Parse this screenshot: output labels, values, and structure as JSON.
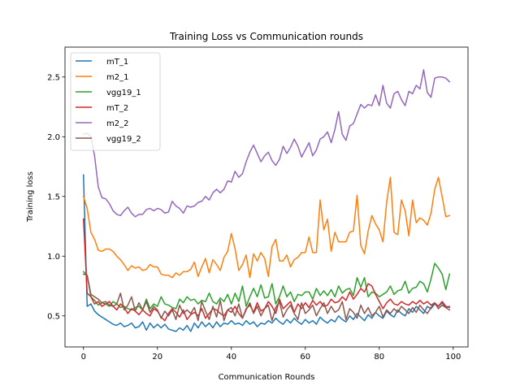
{
  "chart_data": {
    "type": "line",
    "title": "Training Loss vs Communication rounds",
    "xlabel": "Communication Rounds",
    "ylabel": "Training loss",
    "xlim": [
      -5,
      104
    ],
    "ylim": [
      0.24,
      2.75
    ],
    "xticks": [
      0,
      20,
      40,
      60,
      80,
      100
    ],
    "yticks": [
      0.5,
      1.0,
      1.5,
      2.0,
      2.5
    ],
    "xtick_labels": [
      "0",
      "20",
      "40",
      "60",
      "80",
      "100"
    ],
    "ytick_labels": [
      "0.5",
      "1.0",
      "1.5",
      "2.0",
      "2.5"
    ],
    "grid": false,
    "legend_position": "top-left",
    "series": [
      {
        "name": "mT_1",
        "color": "#1f77b4",
        "values": [
          1.68,
          0.58,
          0.6,
          0.54,
          0.51,
          0.49,
          0.47,
          0.45,
          0.43,
          0.42,
          0.44,
          0.41,
          0.42,
          0.44,
          0.4,
          0.41,
          0.45,
          0.38,
          0.44,
          0.4,
          0.43,
          0.4,
          0.43,
          0.39,
          0.38,
          0.37,
          0.4,
          0.38,
          0.42,
          0.37,
          0.44,
          0.4,
          0.45,
          0.41,
          0.44,
          0.4,
          0.45,
          0.41,
          0.44,
          0.43,
          0.46,
          0.43,
          0.44,
          0.42,
          0.46,
          0.43,
          0.45,
          0.41,
          0.44,
          0.43,
          0.46,
          0.44,
          0.48,
          0.45,
          0.43,
          0.47,
          0.44,
          0.48,
          0.45,
          0.43,
          0.47,
          0.44,
          0.46,
          0.43,
          0.49,
          0.46,
          0.44,
          0.47,
          0.45,
          0.5,
          0.47,
          0.45,
          0.5,
          0.47,
          0.52,
          0.49,
          0.46,
          0.51,
          0.48,
          0.53,
          0.5,
          0.48,
          0.54,
          0.51,
          0.49,
          0.55,
          0.52,
          0.5,
          0.56,
          0.53,
          0.58,
          0.55,
          0.52,
          0.58,
          0.56,
          0.6,
          0.58,
          0.61,
          0.57,
          0.58
        ]
      },
      {
        "name": "m2_1",
        "color": "#ff7f0e",
        "values": [
          1.5,
          1.4,
          1.2,
          1.14,
          1.05,
          1.04,
          1.06,
          1.06,
          1.04,
          1.0,
          0.97,
          0.93,
          0.88,
          0.92,
          0.9,
          0.91,
          0.88,
          0.89,
          0.93,
          0.91,
          0.91,
          0.85,
          0.84,
          0.84,
          0.82,
          0.86,
          0.84,
          0.87,
          0.87,
          0.89,
          0.95,
          0.83,
          0.91,
          0.98,
          0.86,
          0.97,
          0.93,
          0.88,
          0.99,
          1.04,
          1.19,
          1.06,
          0.88,
          0.93,
          1.01,
          0.82,
          1.02,
          0.96,
          1.03,
          0.98,
          0.83,
          1.08,
          1.14,
          0.96,
          0.96,
          1.01,
          0.91,
          0.97,
          0.99,
          1.03,
          1.03,
          1.16,
          1.03,
          1.03,
          1.47,
          1.22,
          1.31,
          1.04,
          1.2,
          1.12,
          1.12,
          1.12,
          1.2,
          1.21,
          1.51,
          1.09,
          1.02,
          1.21,
          1.34,
          1.27,
          1.22,
          1.12,
          1.45,
          1.66,
          1.2,
          1.18,
          1.47,
          1.38,
          1.17,
          1.47,
          1.28,
          1.32,
          1.3,
          1.26,
          1.36,
          1.56,
          1.66,
          1.5,
          1.33,
          1.34
        ]
      },
      {
        "name": "vgg19_1",
        "color": "#2ca02c",
        "values": [
          0.87,
          0.84,
          0.66,
          0.63,
          0.59,
          0.61,
          0.6,
          0.58,
          0.62,
          0.6,
          0.57,
          0.58,
          0.56,
          0.55,
          0.57,
          0.58,
          0.55,
          0.64,
          0.56,
          0.6,
          0.58,
          0.66,
          0.6,
          0.59,
          0.57,
          0.56,
          0.64,
          0.61,
          0.66,
          0.63,
          0.64,
          0.6,
          0.63,
          0.62,
          0.69,
          0.62,
          0.6,
          0.65,
          0.62,
          0.68,
          0.6,
          0.69,
          0.62,
          0.75,
          0.58,
          0.66,
          0.73,
          0.66,
          0.76,
          0.65,
          0.66,
          0.77,
          0.6,
          0.66,
          0.75,
          0.66,
          0.7,
          0.62,
          0.68,
          0.67,
          0.7,
          0.7,
          0.64,
          0.73,
          0.67,
          0.71,
          0.67,
          0.72,
          0.66,
          0.75,
          0.69,
          0.72,
          0.73,
          0.67,
          0.82,
          0.74,
          0.82,
          0.66,
          0.7,
          0.69,
          0.66,
          0.68,
          0.7,
          0.75,
          0.68,
          0.71,
          0.72,
          0.79,
          0.69,
          0.73,
          0.74,
          0.79,
          0.77,
          0.7,
          0.81,
          0.94,
          0.9,
          0.85,
          0.72,
          0.85
        ]
      },
      {
        "name": "mT_2",
        "color": "#d62728",
        "values": [
          1.31,
          0.69,
          0.66,
          0.6,
          0.62,
          0.58,
          0.6,
          0.62,
          0.58,
          0.55,
          0.6,
          0.57,
          0.52,
          0.56,
          0.54,
          0.51,
          0.55,
          0.52,
          0.5,
          0.56,
          0.54,
          0.49,
          0.46,
          0.52,
          0.56,
          0.53,
          0.49,
          0.55,
          0.47,
          0.51,
          0.53,
          0.5,
          0.56,
          0.48,
          0.52,
          0.56,
          0.55,
          0.52,
          0.5,
          0.55,
          0.53,
          0.58,
          0.52,
          0.48,
          0.56,
          0.59,
          0.53,
          0.61,
          0.54,
          0.56,
          0.62,
          0.58,
          0.52,
          0.64,
          0.56,
          0.59,
          0.62,
          0.53,
          0.6,
          0.56,
          0.61,
          0.57,
          0.63,
          0.59,
          0.62,
          0.58,
          0.59,
          0.64,
          0.61,
          0.62,
          0.66,
          0.63,
          0.7,
          0.64,
          0.68,
          0.73,
          0.7,
          0.77,
          0.75,
          0.68,
          0.62,
          0.56,
          0.61,
          0.64,
          0.6,
          0.59,
          0.62,
          0.6,
          0.59,
          0.62,
          0.6,
          0.63,
          0.6,
          0.62,
          0.59,
          0.61,
          0.58,
          0.62,
          0.58,
          0.57
        ]
      },
      {
        "name": "m2_2",
        "color": "#9467bd",
        "values": [
          2.02,
          2.03,
          2.0,
          1.84,
          1.58,
          1.49,
          1.48,
          1.44,
          1.38,
          1.35,
          1.34,
          1.38,
          1.41,
          1.36,
          1.33,
          1.35,
          1.35,
          1.39,
          1.4,
          1.38,
          1.4,
          1.39,
          1.36,
          1.37,
          1.46,
          1.42,
          1.4,
          1.36,
          1.42,
          1.41,
          1.42,
          1.45,
          1.46,
          1.5,
          1.47,
          1.53,
          1.56,
          1.53,
          1.56,
          1.63,
          1.62,
          1.71,
          1.66,
          1.69,
          1.79,
          1.87,
          1.93,
          1.86,
          1.79,
          1.84,
          1.87,
          1.8,
          1.76,
          1.81,
          1.92,
          1.86,
          1.91,
          1.98,
          1.92,
          1.83,
          1.89,
          1.95,
          1.84,
          1.89,
          1.98,
          2.0,
          2.04,
          1.95,
          2.06,
          2.21,
          2.02,
          1.97,
          2.09,
          2.11,
          2.19,
          2.27,
          2.24,
          2.27,
          2.26,
          2.35,
          2.26,
          2.43,
          2.28,
          2.24,
          2.36,
          2.38,
          2.31,
          2.26,
          2.38,
          2.36,
          2.43,
          2.4,
          2.56,
          2.37,
          2.33,
          2.49,
          2.5,
          2.5,
          2.49,
          2.46
        ]
      },
      {
        "name": "vgg19_2",
        "color": "#8c564b",
        "values": [
          0.85,
          0.84,
          0.68,
          0.66,
          0.64,
          0.61,
          0.62,
          0.59,
          0.58,
          0.6,
          0.69,
          0.55,
          0.59,
          0.66,
          0.54,
          0.61,
          0.55,
          0.62,
          0.53,
          0.58,
          0.55,
          0.48,
          0.54,
          0.5,
          0.55,
          0.47,
          0.59,
          0.52,
          0.55,
          0.52,
          0.57,
          0.46,
          0.62,
          0.54,
          0.47,
          0.58,
          0.49,
          0.63,
          0.46,
          0.55,
          0.57,
          0.5,
          0.6,
          0.48,
          0.55,
          0.61,
          0.52,
          0.58,
          0.5,
          0.56,
          0.59,
          0.46,
          0.57,
          0.62,
          0.49,
          0.55,
          0.59,
          0.52,
          0.47,
          0.61,
          0.52,
          0.55,
          0.59,
          0.5,
          0.56,
          0.61,
          0.52,
          0.58,
          0.53,
          0.55,
          0.62,
          0.47,
          0.56,
          0.53,
          0.48,
          0.59,
          0.52,
          0.57,
          0.5,
          0.53,
          0.58,
          0.49,
          0.55,
          0.52,
          0.56,
          0.53,
          0.58,
          0.55,
          0.52,
          0.57,
          0.53,
          0.59,
          0.55,
          0.52,
          0.57,
          0.61,
          0.56,
          0.59,
          0.57,
          0.55
        ]
      }
    ]
  }
}
